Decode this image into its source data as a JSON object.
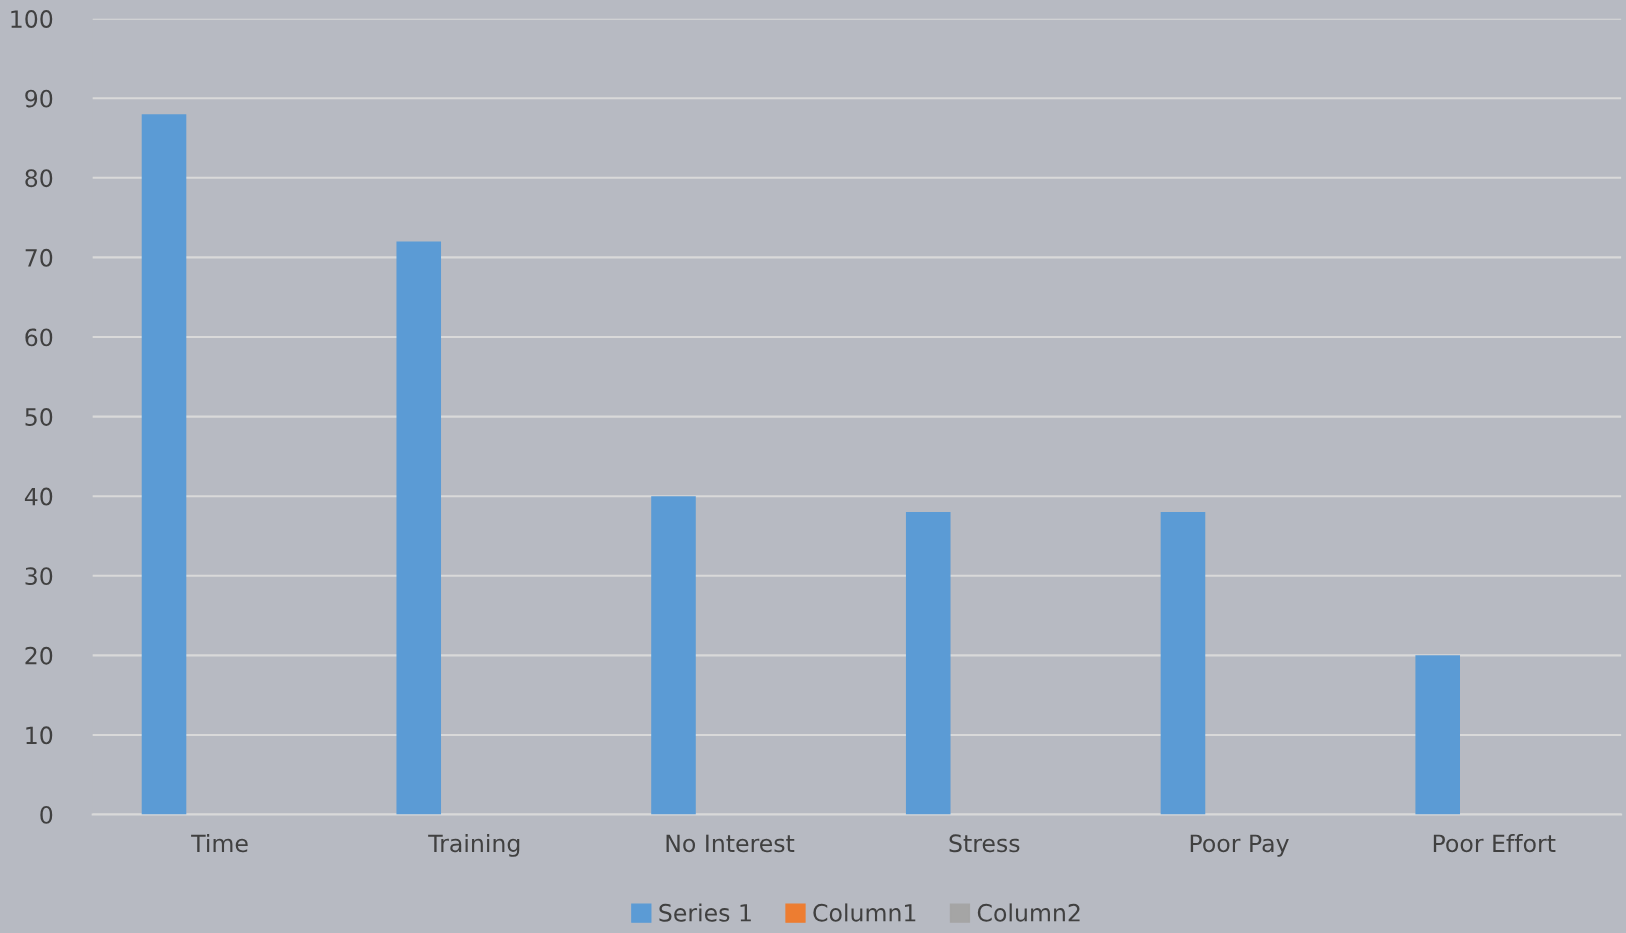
{
  "chart_data": {
    "type": "bar",
    "categories": [
      "Time",
      "Training",
      "No Interest",
      "Stress",
      "Poor Pay",
      "Poor Effort"
    ],
    "series": [
      {
        "name": "Series 1",
        "color": "#5b9bd5",
        "values": [
          88,
          72,
          40,
          38,
          38,
          20
        ]
      },
      {
        "name": "Column1",
        "color": "#ed7d31",
        "values": [
          null,
          null,
          null,
          null,
          null,
          null
        ]
      },
      {
        "name": "Column2",
        "color": "#a5a5a5",
        "values": [
          null,
          null,
          null,
          null,
          null,
          null
        ]
      }
    ],
    "ylim": [
      0,
      100
    ],
    "yticks": [
      0,
      10,
      20,
      30,
      40,
      50,
      60,
      70,
      80,
      90,
      100
    ],
    "grid": "y",
    "legend": "bottom"
  }
}
